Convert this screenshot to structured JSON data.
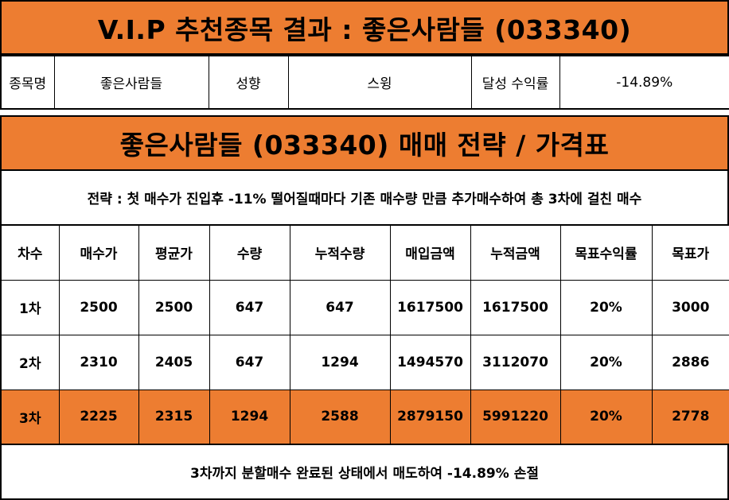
{
  "header": {
    "title": "V.I.P 추천종목 결과 : 좋은사람들 (033340)"
  },
  "info": {
    "name_label": "종목명",
    "name_value": "좋은사람들",
    "style_label": "성향",
    "style_value": "스윙",
    "return_label": "달성 수익률",
    "return_value": "-14.89%"
  },
  "strategy": {
    "title": "좋은사람들 (033340) 매매 전략 / 가격표",
    "description": "전략 : 첫 매수가 진입후 -11% 떨어질때마다 기존 매수량 만큼 추가매수하여 총 3차에 걸친 매수"
  },
  "table": {
    "headers": [
      "차수",
      "매수가",
      "평균가",
      "수량",
      "누적수량",
      "매입금액",
      "누적금액",
      "목표수익률",
      "목표가"
    ],
    "rows": [
      [
        "1차",
        "2500",
        "2500",
        "647",
        "647",
        "1617500",
        "1617500",
        "20%",
        "3000"
      ],
      [
        "2차",
        "2310",
        "2405",
        "647",
        "1294",
        "1494570",
        "3112070",
        "20%",
        "2886"
      ],
      [
        "3차",
        "2225",
        "2315",
        "1294",
        "2588",
        "2879150",
        "5991220",
        "20%",
        "2778"
      ]
    ],
    "highlight_row": 2,
    "highlight_color": "#ED7D31"
  },
  "footer": {
    "text": "3차까지 분할매수 완료된 상태에서 매도하여 -14.89% 손절"
  },
  "colors": {
    "accent": "#ED7D31",
    "border": "#000000",
    "background": "#FFFFFF"
  }
}
